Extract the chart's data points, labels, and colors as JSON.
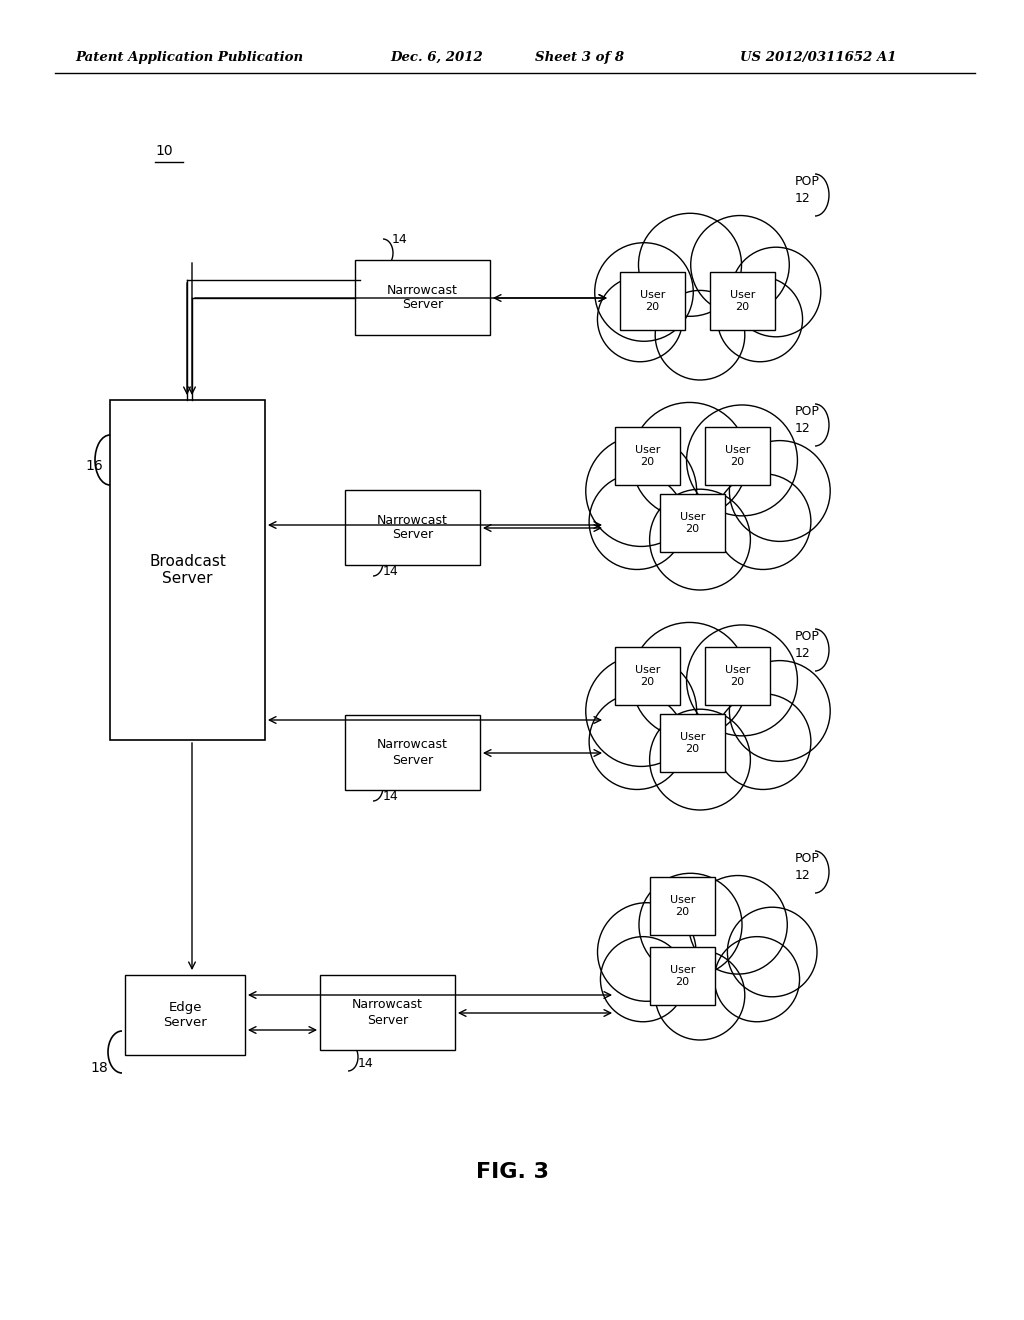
{
  "background_color": "#ffffff",
  "header_text": "Patent Application Publication",
  "header_date": "Dec. 6, 2012",
  "header_sheet": "Sheet 3 of 8",
  "header_patent": "US 2012/0311652 A1",
  "fig_label": "FIG. 3",
  "label_10": "10",
  "label_16": "16",
  "label_18": "18",
  "broadcast_server_text": "Broadcast\nServer",
  "edge_server_text": "Edge\nServer",
  "narrowcast_server_text": "Narrowcast\nServer",
  "user_text": "User\n20",
  "label_14": "14",
  "label_pop": "POP",
  "label_12": "12"
}
